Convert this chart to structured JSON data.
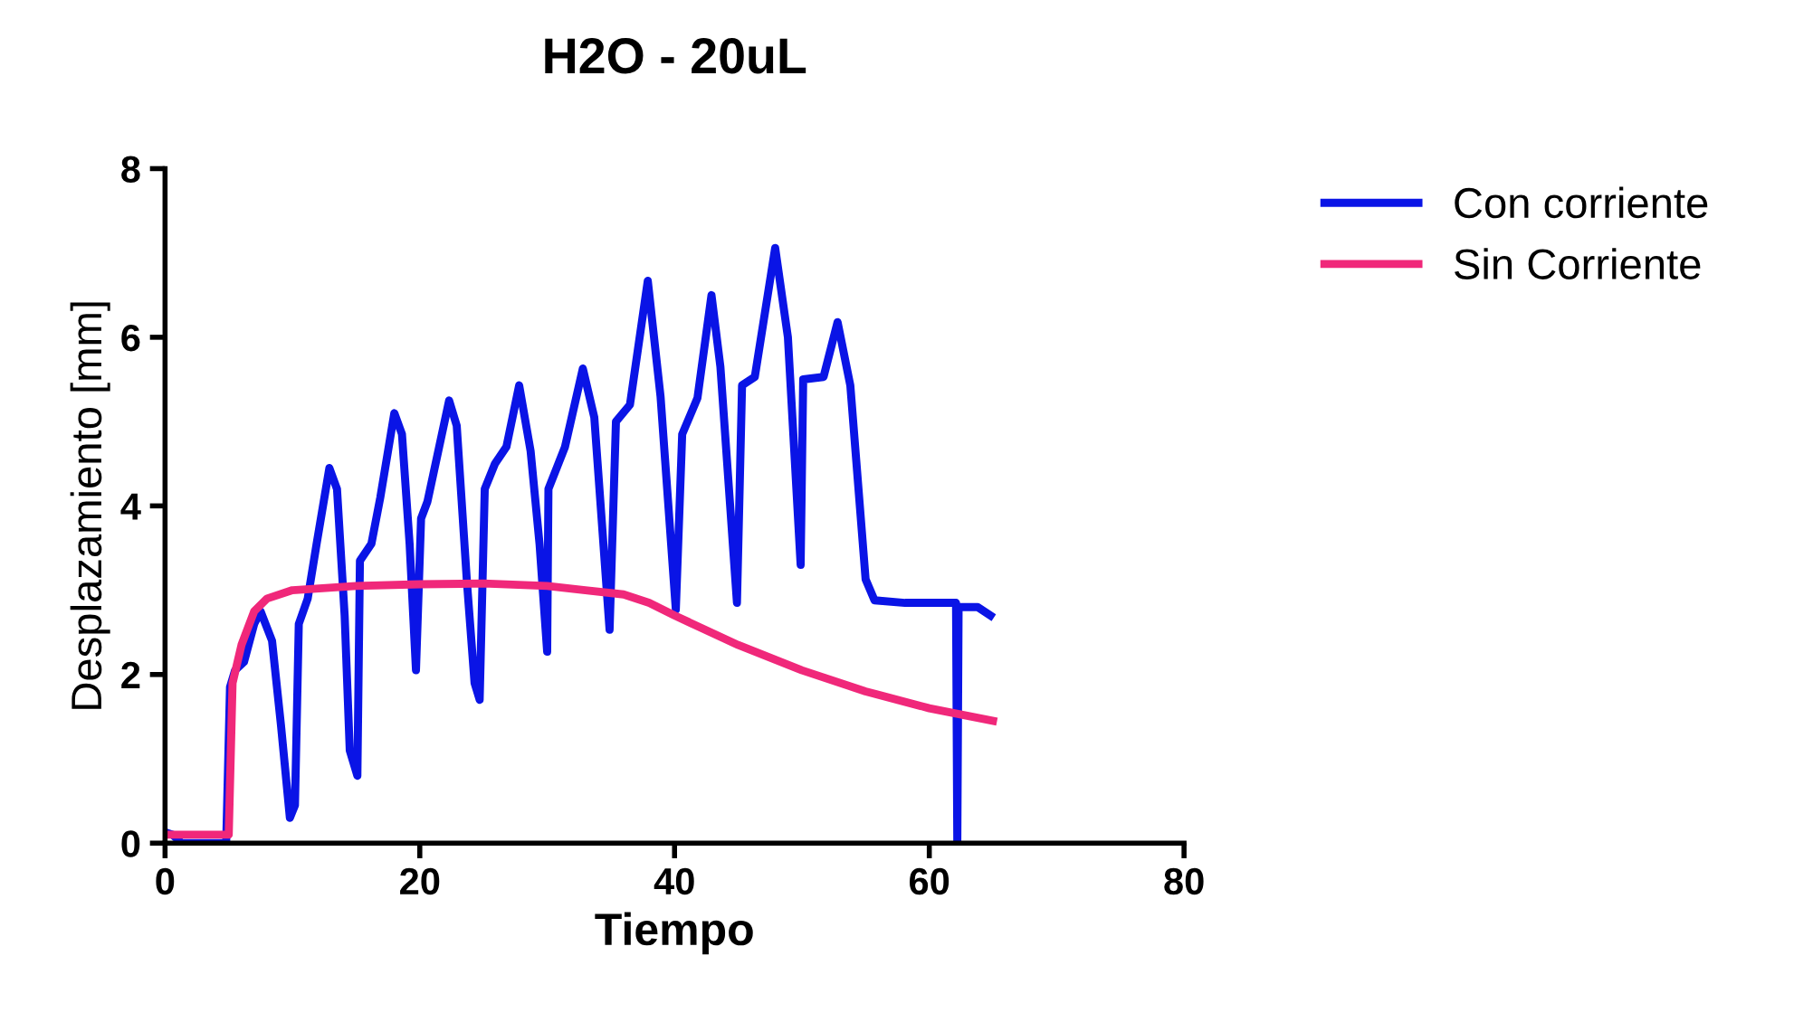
{
  "chart_data": {
    "type": "line",
    "title": "H2O - 20uL",
    "xlabel": "Tiempo",
    "ylabel": "Desplazamiento [mm]",
    "xlim": [
      0,
      80
    ],
    "ylim": [
      0,
      8
    ],
    "xticks": [
      0,
      20,
      40,
      60,
      80
    ],
    "yticks": [
      0,
      2,
      4,
      6,
      8
    ],
    "grid": false,
    "legend": "top right",
    "marker": "none",
    "line_style": "solid",
    "series": [
      {
        "name": "Con corriente",
        "color": "#0a14e6",
        "x": [
          0,
          0.6,
          1.3,
          4.8,
          5.1,
          5.5,
          6.2,
          7.0,
          7.5,
          8.4,
          9.1,
          9.8,
          10.2,
          10.5,
          11.2,
          11.9,
          12.9,
          13.5,
          14.1,
          14.5,
          15.1,
          15.3,
          16.2,
          16.9,
          18.0,
          18.6,
          19.2,
          19.7,
          20.1,
          20.6,
          22.3,
          22.9,
          23.7,
          24.3,
          24.7,
          25.1,
          25.9,
          26.8,
          27.8,
          28.7,
          29.4,
          30.0,
          30.1,
          31.4,
          32.8,
          33.7,
          34.9,
          35.4,
          36.5,
          37.9,
          38.9,
          40.1,
          40.6,
          41.8,
          42.9,
          43.6,
          44.9,
          45.3,
          46.3,
          47.9,
          48.9,
          49.9,
          50.1,
          51.7,
          52.8,
          53.8,
          55.0,
          55.7,
          58.1,
          60.9,
          62.1,
          62.2,
          62.3,
          63.8,
          64.8
        ],
        "values": [
          0.13,
          0.1,
          0,
          0,
          1.85,
          2.05,
          2.15,
          2.6,
          2.75,
          2.4,
          1.4,
          0.3,
          0.45,
          2.6,
          2.9,
          3.55,
          4.45,
          4.2,
          2.7,
          1.1,
          0.8,
          3.35,
          3.55,
          4.1,
          5.1,
          4.85,
          3.55,
          2.05,
          3.85,
          4.05,
          5.25,
          4.95,
          3.1,
          1.9,
          1.7,
          4.2,
          4.5,
          4.7,
          5.43,
          4.65,
          3.55,
          2.27,
          4.2,
          4.7,
          5.63,
          5.05,
          2.53,
          5.0,
          5.2,
          6.67,
          5.3,
          2.77,
          4.85,
          5.28,
          6.5,
          5.65,
          2.85,
          5.43,
          5.53,
          7.06,
          6.0,
          3.3,
          5.5,
          5.53,
          6.18,
          5.43,
          3.13,
          2.88,
          2.85,
          2.85,
          2.85,
          0,
          2.8,
          2.8,
          2.7
        ]
      },
      {
        "name": "Sin Corriente",
        "color": "#f0287a",
        "x": [
          0,
          5.0,
          5.3,
          6,
          7,
          8,
          10,
          15,
          20,
          25,
          30,
          33,
          36,
          38,
          40,
          45,
          50,
          55,
          60,
          65
        ],
        "values": [
          0.1,
          0.1,
          1.9,
          2.35,
          2.75,
          2.9,
          3.0,
          3.05,
          3.07,
          3.08,
          3.05,
          3.0,
          2.95,
          2.85,
          2.7,
          2.35,
          2.05,
          1.8,
          1.6,
          1.45
        ]
      }
    ]
  }
}
